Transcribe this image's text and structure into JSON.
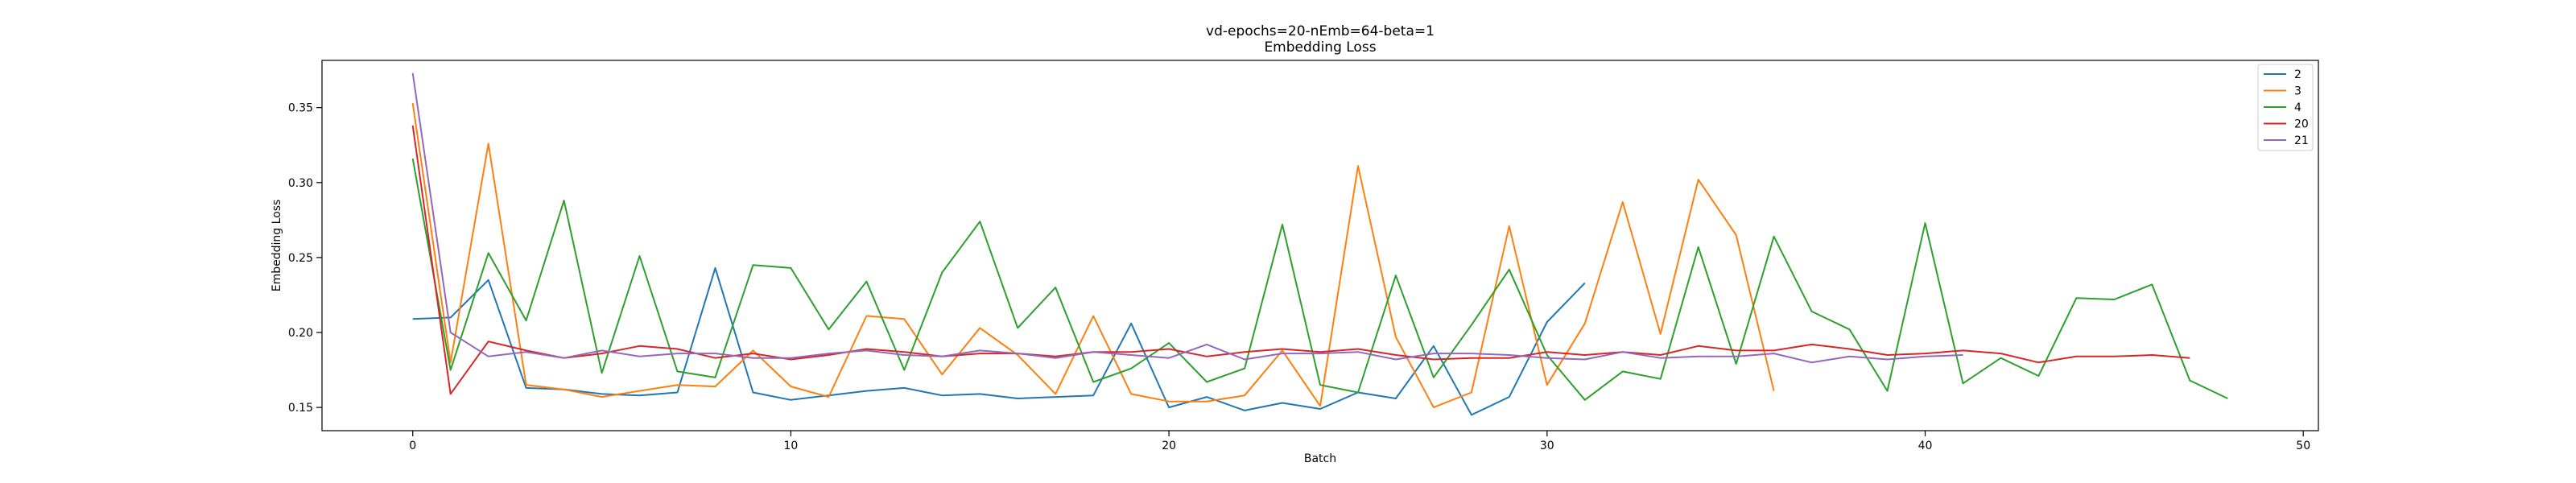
{
  "chart_data": {
    "type": "line",
    "title": "vd-epochs=20-nEmb=64-beta=1",
    "subtitle": "Embedding Loss",
    "xlabel": "Batch",
    "ylabel": "Embedding Loss",
    "xlim": [
      -2.4,
      50.4
    ],
    "ylim": [
      0.1345,
      0.3815
    ],
    "xticks": [
      0,
      10,
      20,
      30,
      40,
      50
    ],
    "yticks": [
      0.15,
      0.2,
      0.25,
      0.3,
      0.35
    ],
    "xtick_labels": [
      "0",
      "10",
      "20",
      "30",
      "40",
      "50"
    ],
    "ytick_labels": [
      "0.15",
      "0.20",
      "0.25",
      "0.30",
      "0.35"
    ],
    "grid": false,
    "legend_position": "top-right",
    "series": [
      {
        "name": "2",
        "color": "#1f77b4",
        "values": [
          0.209,
          0.21,
          0.235,
          0.163,
          0.162,
          0.159,
          0.158,
          0.16,
          0.243,
          0.16,
          0.155,
          0.158,
          0.161,
          0.163,
          0.158,
          0.159,
          0.156,
          0.157,
          0.158,
          0.206,
          0.15,
          0.157,
          0.148,
          0.153,
          0.149,
          0.16,
          0.156,
          0.191,
          0.145,
          0.157,
          0.207,
          0.233
        ]
      },
      {
        "name": "3",
        "color": "#ff7f0e",
        "values": [
          0.353,
          0.18,
          0.326,
          0.165,
          0.162,
          0.157,
          0.161,
          0.165,
          0.164,
          0.188,
          0.164,
          0.157,
          0.211,
          0.209,
          0.172,
          0.203,
          0.185,
          0.159,
          0.211,
          0.159,
          0.154,
          0.154,
          0.158,
          0.188,
          0.151,
          0.311,
          0.197,
          0.15,
          0.16,
          0.271,
          0.165,
          0.206,
          0.287,
          0.199,
          0.302,
          0.265,
          0.161
        ]
      },
      {
        "name": "4",
        "color": "#2ca02c",
        "values": [
          0.316,
          0.175,
          0.253,
          0.208,
          0.288,
          0.173,
          0.251,
          0.174,
          0.17,
          0.245,
          0.243,
          0.202,
          0.234,
          0.175,
          0.24,
          0.274,
          0.203,
          0.23,
          0.167,
          0.176,
          0.193,
          0.167,
          0.176,
          0.272,
          0.165,
          0.16,
          0.238,
          0.17,
          0.205,
          0.242,
          0.185,
          0.155,
          0.174,
          0.169,
          0.257,
          0.179,
          0.264,
          0.214,
          0.202,
          0.161,
          0.273,
          0.166,
          0.183,
          0.171,
          0.223,
          0.222,
          0.232,
          0.168,
          0.156
        ]
      },
      {
        "name": "20",
        "color": "#d62728",
        "values": [
          0.338,
          0.159,
          0.194,
          0.188,
          0.183,
          0.186,
          0.191,
          0.189,
          0.183,
          0.186,
          0.182,
          0.185,
          0.189,
          0.187,
          0.184,
          0.186,
          0.186,
          0.184,
          0.187,
          0.187,
          0.189,
          0.184,
          0.187,
          0.189,
          0.187,
          0.189,
          0.185,
          0.182,
          0.183,
          0.183,
          0.187,
          0.185,
          0.187,
          0.185,
          0.191,
          0.188,
          0.188,
          0.192,
          0.189,
          0.185,
          0.186,
          0.188,
          0.186,
          0.18,
          0.184,
          0.184,
          0.185,
          0.183
        ]
      },
      {
        "name": "21",
        "color": "#9467bd",
        "values": [
          0.373,
          0.2,
          0.184,
          0.187,
          0.183,
          0.188,
          0.184,
          0.186,
          0.186,
          0.183,
          0.183,
          0.186,
          0.188,
          0.185,
          0.184,
          0.188,
          0.186,
          0.183,
          0.187,
          0.185,
          0.183,
          0.192,
          0.182,
          0.186,
          0.186,
          0.187,
          0.182,
          0.186,
          0.186,
          0.185,
          0.183,
          0.182,
          0.187,
          0.183,
          0.184,
          0.184,
          0.186,
          0.18,
          0.184,
          0.182,
          0.184,
          0.185
        ]
      }
    ]
  }
}
